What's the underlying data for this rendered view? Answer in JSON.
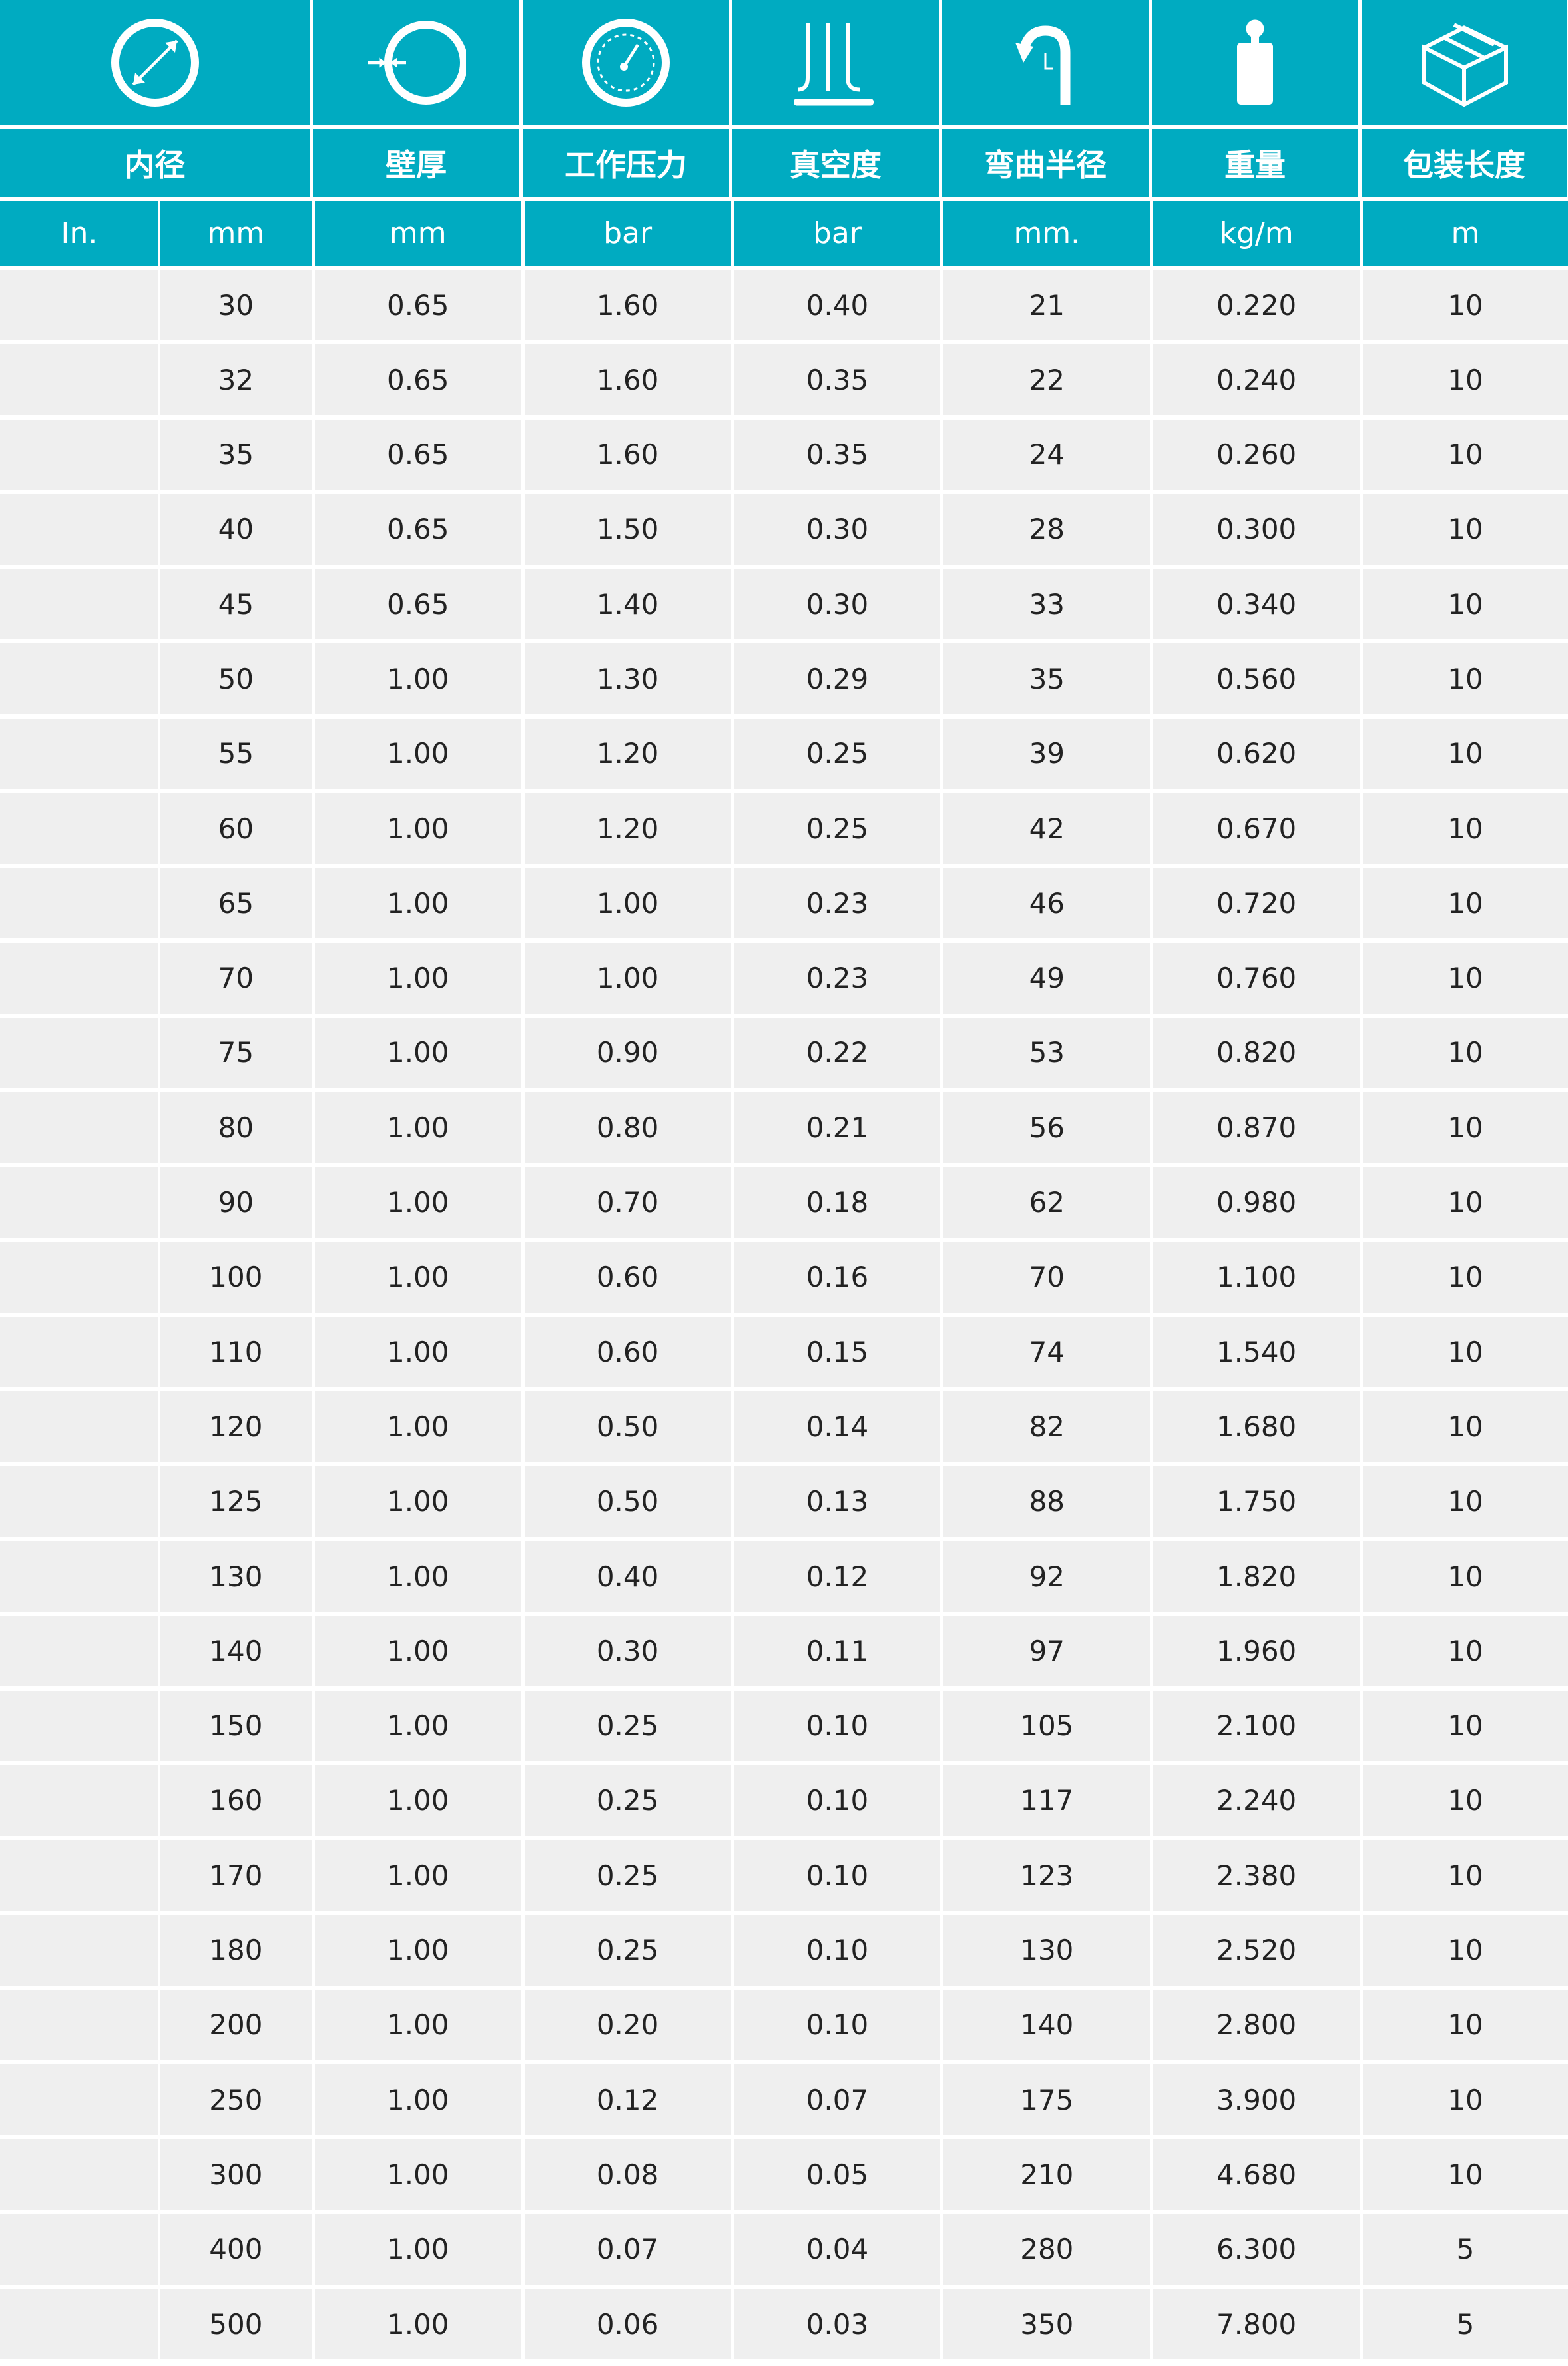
{
  "accent_color": "#00abc1",
  "icons": [
    "diameter-icon",
    "wall-thickness-icon",
    "pressure-gauge-icon",
    "vacuum-icon",
    "bend-radius-icon",
    "weight-icon",
    "package-box-icon"
  ],
  "headers": [
    "内径",
    "壁厚",
    "工作压力",
    "真空度",
    "弯曲半径",
    "重量",
    "包装长度"
  ],
  "units": [
    "In.",
    "mm",
    "mm",
    "bar",
    "bar",
    "mm.",
    "kg/m",
    "m"
  ],
  "rows": [
    [
      "",
      "30",
      "0.65",
      "1.60",
      "0.40",
      "21",
      "0.220",
      "10"
    ],
    [
      "",
      "32",
      "0.65",
      "1.60",
      "0.35",
      "22",
      "0.240",
      "10"
    ],
    [
      "",
      "35",
      "0.65",
      "1.60",
      "0.35",
      "24",
      "0.260",
      "10"
    ],
    [
      "",
      "40",
      "0.65",
      "1.50",
      "0.30",
      "28",
      "0.300",
      "10"
    ],
    [
      "",
      "45",
      "0.65",
      "1.40",
      "0.30",
      "33",
      "0.340",
      "10"
    ],
    [
      "",
      "50",
      "1.00",
      "1.30",
      "0.29",
      "35",
      "0.560",
      "10"
    ],
    [
      "",
      "55",
      "1.00",
      "1.20",
      "0.25",
      "39",
      "0.620",
      "10"
    ],
    [
      "",
      "60",
      "1.00",
      "1.20",
      "0.25",
      "42",
      "0.670",
      "10"
    ],
    [
      "",
      "65",
      "1.00",
      "1.00",
      "0.23",
      "46",
      "0.720",
      "10"
    ],
    [
      "",
      "70",
      "1.00",
      "1.00",
      "0.23",
      "49",
      "0.760",
      "10"
    ],
    [
      "",
      "75",
      "1.00",
      "0.90",
      "0.22",
      "53",
      "0.820",
      "10"
    ],
    [
      "",
      "80",
      "1.00",
      "0.80",
      "0.21",
      "56",
      "0.870",
      "10"
    ],
    [
      "",
      "90",
      "1.00",
      "0.70",
      "0.18",
      "62",
      "0.980",
      "10"
    ],
    [
      "",
      "100",
      "1.00",
      "0.60",
      "0.16",
      "70",
      "1.100",
      "10"
    ],
    [
      "",
      "110",
      "1.00",
      "0.60",
      "0.15",
      "74",
      "1.540",
      "10"
    ],
    [
      "",
      "120",
      "1.00",
      "0.50",
      "0.14",
      "82",
      "1.680",
      "10"
    ],
    [
      "",
      "125",
      "1.00",
      "0.50",
      "0.13",
      "88",
      "1.750",
      "10"
    ],
    [
      "",
      "130",
      "1.00",
      "0.40",
      "0.12",
      "92",
      "1.820",
      "10"
    ],
    [
      "",
      "140",
      "1.00",
      "0.30",
      "0.11",
      "97",
      "1.960",
      "10"
    ],
    [
      "",
      "150",
      "1.00",
      "0.25",
      "0.10",
      "105",
      "2.100",
      "10"
    ],
    [
      "",
      "160",
      "1.00",
      "0.25",
      "0.10",
      "117",
      "2.240",
      "10"
    ],
    [
      "",
      "170",
      "1.00",
      "0.25",
      "0.10",
      "123",
      "2.380",
      "10"
    ],
    [
      "",
      "180",
      "1.00",
      "0.25",
      "0.10",
      "130",
      "2.520",
      "10"
    ],
    [
      "",
      "200",
      "1.00",
      "0.20",
      "0.10",
      "140",
      "2.800",
      "10"
    ],
    [
      "",
      "250",
      "1.00",
      "0.12",
      "0.07",
      "175",
      "3.900",
      "10"
    ],
    [
      "",
      "300",
      "1.00",
      "0.08",
      "0.05",
      "210",
      "4.680",
      "10"
    ],
    [
      "",
      "400",
      "1.00",
      "0.07",
      "0.04",
      "280",
      "6.300",
      "5"
    ],
    [
      "",
      "500",
      "1.00",
      "0.06",
      "0.03",
      "350",
      "7.800",
      "5"
    ]
  ]
}
